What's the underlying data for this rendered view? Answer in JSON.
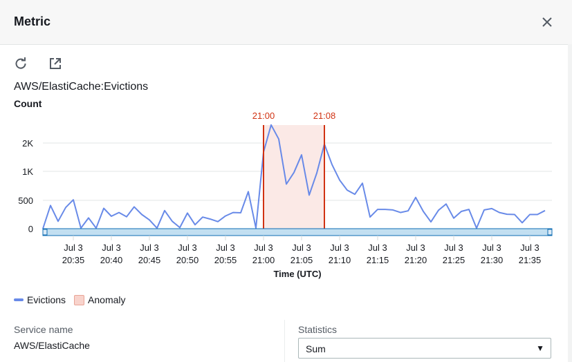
{
  "header": {
    "title": "Metric",
    "close_icon": "close-icon"
  },
  "toolbar": {
    "refresh_icon": "refresh-icon",
    "external_icon": "external-link-icon"
  },
  "metric": {
    "title": "AWS/ElastiCache:Evictions",
    "unit": "Count"
  },
  "chart_data": {
    "type": "line",
    "xlabel": "Time (UTC)",
    "ylabel": "Count",
    "y_ticks": [
      0,
      500,
      1000,
      2000
    ],
    "y_tick_labels": [
      "0",
      "500",
      "1K",
      "2K"
    ],
    "x_tick_labels": [
      [
        "Jul 3",
        "20:35"
      ],
      [
        "Jul 3",
        "20:40"
      ],
      [
        "Jul 3",
        "20:45"
      ],
      [
        "Jul 3",
        "20:50"
      ],
      [
        "Jul 3",
        "20:55"
      ],
      [
        "Jul 3",
        "21:00"
      ],
      [
        "Jul 3",
        "21:05"
      ],
      [
        "Jul 3",
        "21:10"
      ],
      [
        "Jul 3",
        "21:15"
      ],
      [
        "Jul 3",
        "21:20"
      ],
      [
        "Jul 3",
        "21:25"
      ],
      [
        "Jul 3",
        "21:30"
      ],
      [
        "Jul 3",
        "21:35"
      ]
    ],
    "x_start": "20:31",
    "x_end": "21:37",
    "grid": "horizontal",
    "legend_placement": "bottom-left",
    "series": [
      {
        "name": "Evictions",
        "color": "#688ae8",
        "values": [
          0,
          410,
          130,
          375,
          510,
          10,
          190,
          10,
          360,
          220,
          285,
          210,
          385,
          250,
          155,
          10,
          320,
          130,
          20,
          275,
          70,
          205,
          170,
          125,
          225,
          285,
          280,
          650,
          10,
          1680,
          2640,
          2140,
          780,
          980,
          1580,
          590,
          970,
          1960,
          1240,
          850,
          675,
          605,
          795,
          205,
          340,
          340,
          330,
          285,
          315,
          550,
          305,
          120,
          325,
          435,
          185,
          305,
          340,
          10,
          330,
          355,
          285,
          255,
          250,
          105,
          250,
          250,
          320
        ]
      }
    ],
    "anomaly": {
      "name": "Anomaly",
      "start": "21:00",
      "end": "21:08",
      "line_color": "#d13212",
      "fill_color": "#fbe9e6",
      "start_label": "21:00",
      "end_label": "21:08"
    }
  },
  "legend": {
    "series": "Evictions",
    "anomaly": "Anomaly"
  },
  "details": {
    "service_label": "Service name",
    "service_value": "AWS/ElastiCache",
    "statistics_label": "Statistics",
    "statistics_value": "Sum"
  }
}
